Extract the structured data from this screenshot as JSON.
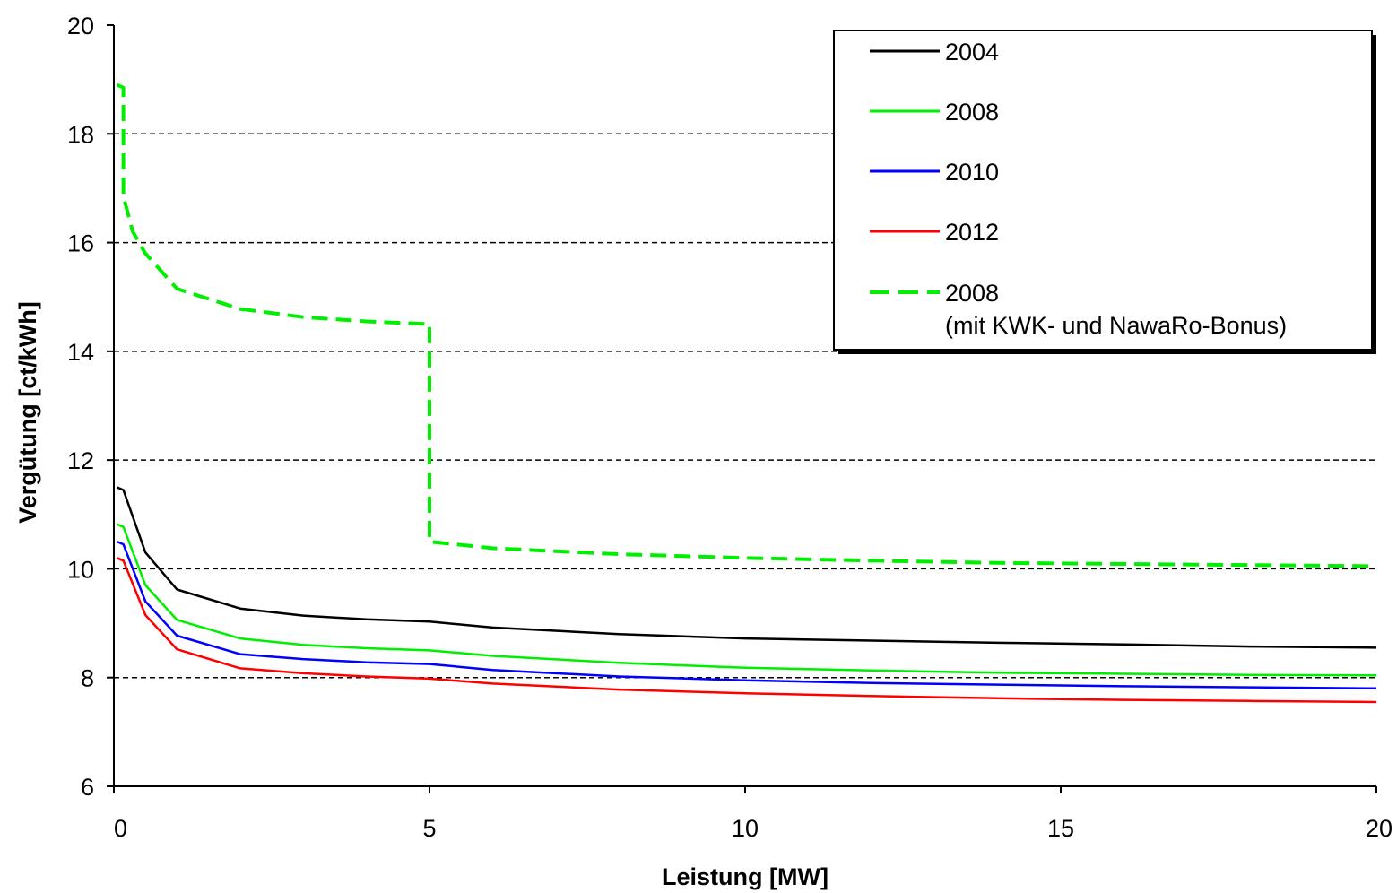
{
  "chart_data": {
    "type": "line",
    "title": "",
    "xlabel": "Leistung [MW]",
    "ylabel": "Vergütung [ct/kWh]",
    "xlim": [
      0,
      20
    ],
    "ylim": [
      6,
      20
    ],
    "xticks": [
      0,
      5,
      10,
      15,
      20
    ],
    "yticks": [
      6,
      8,
      10,
      12,
      14,
      16,
      18,
      20
    ],
    "grid": "horizontal dashed",
    "legend_position": "top-right",
    "series": [
      {
        "name": "2004",
        "color": "#000000",
        "dash": "solid",
        "x": [
          0.05,
          0.15,
          0.5,
          1,
          2,
          3,
          4,
          5,
          6,
          8,
          10,
          12,
          14,
          16,
          18,
          20
        ],
        "y": [
          11.5,
          11.45,
          10.3,
          9.62,
          9.27,
          9.14,
          9.07,
          9.03,
          8.92,
          8.8,
          8.72,
          8.68,
          8.64,
          8.61,
          8.57,
          8.55
        ]
      },
      {
        "name": "2008",
        "color": "#00ee00",
        "dash": "solid",
        "x": [
          0.05,
          0.15,
          0.5,
          1,
          2,
          3,
          4,
          5,
          6,
          8,
          10,
          12,
          14,
          16,
          18,
          20
        ],
        "y": [
          10.82,
          10.77,
          9.7,
          9.06,
          8.72,
          8.6,
          8.54,
          8.5,
          8.4,
          8.27,
          8.18,
          8.13,
          8.09,
          8.07,
          8.05,
          8.04
        ]
      },
      {
        "name": "2010",
        "color": "#0000ff",
        "dash": "solid",
        "x": [
          0.05,
          0.15,
          0.5,
          1,
          2,
          3,
          4,
          5,
          6,
          8,
          10,
          12,
          14,
          16,
          18,
          20
        ],
        "y": [
          10.5,
          10.45,
          9.4,
          8.77,
          8.43,
          8.34,
          8.28,
          8.25,
          8.14,
          8.02,
          7.95,
          7.9,
          7.87,
          7.84,
          7.82,
          7.8
        ]
      },
      {
        "name": "2012",
        "color": "#ff0000",
        "dash": "solid",
        "x": [
          0.05,
          0.15,
          0.5,
          1,
          2,
          3,
          4,
          5,
          6,
          8,
          10,
          12,
          14,
          16,
          18,
          20
        ],
        "y": [
          10.2,
          10.15,
          9.15,
          8.52,
          8.17,
          8.08,
          8.02,
          7.98,
          7.89,
          7.78,
          7.71,
          7.66,
          7.62,
          7.59,
          7.57,
          7.55
        ]
      },
      {
        "name": "2008\n(mit KWK- und NawaRo-Bonus)",
        "color": "#00ee00",
        "dash": "dashed",
        "x": [
          0.05,
          0.15,
          0.15,
          0.3,
          0.5,
          1,
          2,
          3,
          4,
          5,
          5,
          6,
          8,
          10,
          12,
          14,
          16,
          18,
          20
        ],
        "y": [
          18.9,
          18.85,
          16.85,
          16.2,
          15.8,
          15.15,
          14.78,
          14.63,
          14.55,
          14.5,
          10.5,
          10.38,
          10.27,
          10.2,
          10.15,
          10.11,
          10.09,
          10.07,
          10.05
        ]
      }
    ]
  }
}
